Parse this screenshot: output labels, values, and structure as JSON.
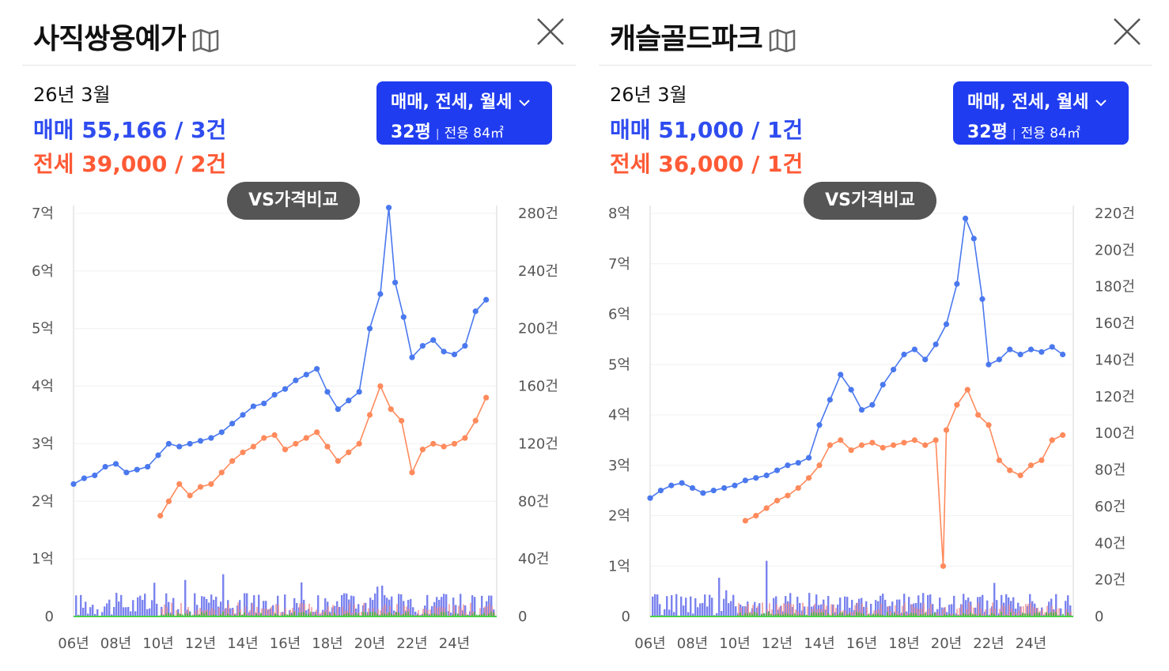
{
  "panels": [
    {
      "title": "사직쌍용예가",
      "date": "26년 3월",
      "sale_summary": "매매 55,166 / 3건",
      "jeonse_summary": "전세 39,000 / 2건",
      "filter": {
        "types": "매매, 전세, 월세",
        "pyeong": "32평",
        "area": "전용 84㎡"
      },
      "vs_button": "VS가격비교"
    },
    {
      "title": "캐슬골드파크",
      "date": "26년 3월",
      "sale_summary": "매매 51,000 / 1건",
      "jeonse_summary": "전세 36,000 / 1건",
      "filter": {
        "types": "매매, 전세, 월세",
        "pyeong": "32평",
        "area": "전용 84㎡"
      },
      "vs_button": "VS가격비교"
    }
  ],
  "colors": {
    "sale": "#4a78ee",
    "jeonse": "#ff8a5c",
    "volume_sale": "#4f5ae8",
    "volume_jeonse": "#f08f8f",
    "volume_wolse": "#43b53d",
    "filter_bg": "#1f3cf0",
    "vs_bg": "#555555"
  },
  "chart_data": [
    {
      "type": "line",
      "x_ticks": [
        "06년",
        "08년",
        "10년",
        "12년",
        "14년",
        "16년",
        "18년",
        "20년",
        "22년",
        "24년"
      ],
      "x_range": [
        2006,
        2026
      ],
      "y_left_ticks": [
        "0",
        "1억",
        "2억",
        "3억",
        "4억",
        "5억",
        "6억",
        "7억"
      ],
      "y_left_range_eok": [
        0,
        7
      ],
      "y_right_ticks": [
        "0",
        "40건",
        "80건",
        "120건",
        "160건",
        "200건",
        "240건",
        "280건"
      ],
      "y_right_range": [
        0,
        280
      ],
      "series": [
        {
          "name": "매매",
          "points": [
            [
              2006.0,
              2.3
            ],
            [
              2006.5,
              2.4
            ],
            [
              2007.0,
              2.45
            ],
            [
              2007.5,
              2.6
            ],
            [
              2008.0,
              2.65
            ],
            [
              2008.5,
              2.5
            ],
            [
              2009.0,
              2.55
            ],
            [
              2009.5,
              2.6
            ],
            [
              2010.0,
              2.8
            ],
            [
              2010.5,
              3.0
            ],
            [
              2011.0,
              2.95
            ],
            [
              2011.5,
              3.0
            ],
            [
              2012.0,
              3.05
            ],
            [
              2012.5,
              3.1
            ],
            [
              2013.0,
              3.2
            ],
            [
              2013.5,
              3.35
            ],
            [
              2014.0,
              3.5
            ],
            [
              2014.5,
              3.65
            ],
            [
              2015.0,
              3.7
            ],
            [
              2015.5,
              3.85
            ],
            [
              2016.0,
              3.95
            ],
            [
              2016.5,
              4.1
            ],
            [
              2017.0,
              4.2
            ],
            [
              2017.5,
              4.3
            ],
            [
              2018.0,
              3.9
            ],
            [
              2018.5,
              3.6
            ],
            [
              2019.0,
              3.75
            ],
            [
              2019.5,
              3.9
            ],
            [
              2020.0,
              5.0
            ],
            [
              2020.5,
              5.6
            ],
            [
              2020.9,
              7.1
            ],
            [
              2021.2,
              5.8
            ],
            [
              2021.6,
              5.2
            ],
            [
              2022.0,
              4.5
            ],
            [
              2022.5,
              4.7
            ],
            [
              2023.0,
              4.8
            ],
            [
              2023.5,
              4.6
            ],
            [
              2024.0,
              4.55
            ],
            [
              2024.5,
              4.7
            ],
            [
              2025.0,
              5.3
            ],
            [
              2025.5,
              5.5
            ]
          ]
        },
        {
          "name": "전세",
          "points": [
            [
              2010.1,
              1.75
            ],
            [
              2010.5,
              2.0
            ],
            [
              2011.0,
              2.3
            ],
            [
              2011.5,
              2.1
            ],
            [
              2012.0,
              2.25
            ],
            [
              2012.5,
              2.3
            ],
            [
              2013.0,
              2.5
            ],
            [
              2013.5,
              2.7
            ],
            [
              2014.0,
              2.85
            ],
            [
              2014.5,
              2.95
            ],
            [
              2015.0,
              3.1
            ],
            [
              2015.5,
              3.15
            ],
            [
              2016.0,
              2.9
            ],
            [
              2016.5,
              3.0
            ],
            [
              2017.0,
              3.1
            ],
            [
              2017.5,
              3.2
            ],
            [
              2018.0,
              2.95
            ],
            [
              2018.5,
              2.7
            ],
            [
              2019.0,
              2.85
            ],
            [
              2019.5,
              3.0
            ],
            [
              2020.0,
              3.5
            ],
            [
              2020.5,
              4.0
            ],
            [
              2021.0,
              3.6
            ],
            [
              2021.5,
              3.4
            ],
            [
              2022.0,
              2.5
            ],
            [
              2022.5,
              2.9
            ],
            [
              2023.0,
              3.0
            ],
            [
              2023.5,
              2.95
            ],
            [
              2024.0,
              3.0
            ],
            [
              2024.5,
              3.1
            ],
            [
              2025.0,
              3.4
            ],
            [
              2025.5,
              3.8
            ]
          ]
        }
      ]
    },
    {
      "type": "line",
      "x_ticks": [
        "06년",
        "08년",
        "10년",
        "12년",
        "14년",
        "16년",
        "18년",
        "20년",
        "22년",
        "24년"
      ],
      "x_range": [
        2006,
        2026
      ],
      "y_left_ticks": [
        "0",
        "1억",
        "2억",
        "3억",
        "4억",
        "5억",
        "6억",
        "7억",
        "8억"
      ],
      "y_left_range_eok": [
        0,
        8
      ],
      "y_right_ticks": [
        "0",
        "20건",
        "40건",
        "60건",
        "80건",
        "100건",
        "120건",
        "140건",
        "160건",
        "180건",
        "200건",
        "220건"
      ],
      "y_right_range": [
        0,
        220
      ],
      "series": [
        {
          "name": "매매",
          "points": [
            [
              2006.0,
              2.35
            ],
            [
              2006.5,
              2.5
            ],
            [
              2007.0,
              2.6
            ],
            [
              2007.5,
              2.65
            ],
            [
              2008.0,
              2.55
            ],
            [
              2008.5,
              2.45
            ],
            [
              2009.0,
              2.5
            ],
            [
              2009.5,
              2.55
            ],
            [
              2010.0,
              2.6
            ],
            [
              2010.5,
              2.7
            ],
            [
              2011.0,
              2.75
            ],
            [
              2011.5,
              2.8
            ],
            [
              2012.0,
              2.9
            ],
            [
              2012.5,
              3.0
            ],
            [
              2013.0,
              3.05
            ],
            [
              2013.5,
              3.15
            ],
            [
              2014.0,
              3.8
            ],
            [
              2014.5,
              4.3
            ],
            [
              2015.0,
              4.8
            ],
            [
              2015.5,
              4.5
            ],
            [
              2016.0,
              4.1
            ],
            [
              2016.5,
              4.2
            ],
            [
              2017.0,
              4.6
            ],
            [
              2017.5,
              4.9
            ],
            [
              2018.0,
              5.2
            ],
            [
              2018.5,
              5.3
            ],
            [
              2019.0,
              5.1
            ],
            [
              2019.5,
              5.4
            ],
            [
              2020.0,
              5.8
            ],
            [
              2020.5,
              6.6
            ],
            [
              2020.9,
              7.9
            ],
            [
              2021.3,
              7.5
            ],
            [
              2021.7,
              6.3
            ],
            [
              2022.0,
              5.0
            ],
            [
              2022.5,
              5.1
            ],
            [
              2023.0,
              5.3
            ],
            [
              2023.5,
              5.2
            ],
            [
              2024.0,
              5.3
            ],
            [
              2024.5,
              5.25
            ],
            [
              2025.0,
              5.35
            ],
            [
              2025.5,
              5.2
            ]
          ]
        },
        {
          "name": "전세",
          "points": [
            [
              2010.5,
              1.9
            ],
            [
              2011.0,
              2.0
            ],
            [
              2011.5,
              2.15
            ],
            [
              2012.0,
              2.3
            ],
            [
              2012.5,
              2.4
            ],
            [
              2013.0,
              2.55
            ],
            [
              2013.5,
              2.75
            ],
            [
              2014.0,
              3.0
            ],
            [
              2014.5,
              3.4
            ],
            [
              2015.0,
              3.5
            ],
            [
              2015.5,
              3.3
            ],
            [
              2016.0,
              3.4
            ],
            [
              2016.5,
              3.45
            ],
            [
              2017.0,
              3.35
            ],
            [
              2017.5,
              3.4
            ],
            [
              2018.0,
              3.45
            ],
            [
              2018.5,
              3.5
            ],
            [
              2019.0,
              3.4
            ],
            [
              2019.5,
              3.5
            ],
            [
              2019.85,
              1.0
            ],
            [
              2020.0,
              3.7
            ],
            [
              2020.5,
              4.2
            ],
            [
              2021.0,
              4.5
            ],
            [
              2021.5,
              4.0
            ],
            [
              2022.0,
              3.8
            ],
            [
              2022.5,
              3.1
            ],
            [
              2023.0,
              2.9
            ],
            [
              2023.5,
              2.8
            ],
            [
              2024.0,
              3.0
            ],
            [
              2024.5,
              3.1
            ],
            [
              2025.0,
              3.5
            ],
            [
              2025.5,
              3.6
            ]
          ]
        }
      ]
    }
  ]
}
